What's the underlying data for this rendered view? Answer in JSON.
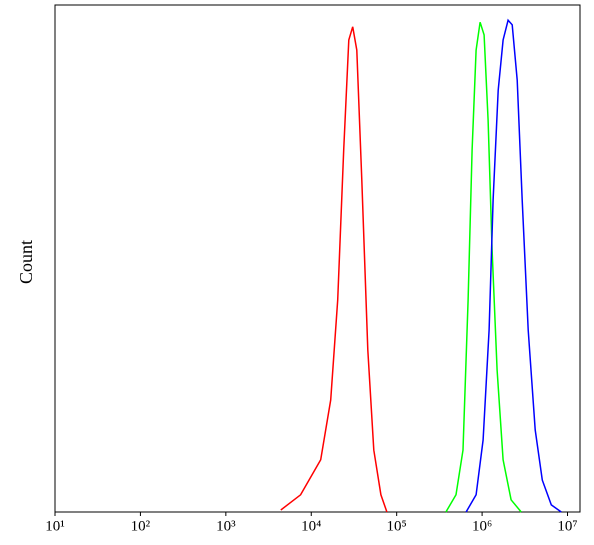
{
  "chart_data": {
    "type": "line",
    "y_label": "Count",
    "x_scale": "log",
    "xlim": [
      10,
      14000000
    ],
    "ylim": [
      0,
      100
    ],
    "xticks": [
      {
        "value": 10,
        "label": "10¹"
      },
      {
        "value": 100,
        "label": "10²"
      },
      {
        "value": 1000,
        "label": "10³"
      },
      {
        "value": 10000,
        "label": "10⁴"
      },
      {
        "value": 100000,
        "label": "10⁵"
      },
      {
        "value": 1000000,
        "label": "10⁶"
      },
      {
        "value": 10000000,
        "label": "10⁷"
      }
    ],
    "series": [
      {
        "color": "#ff0000",
        "x": [
          4400,
          7500,
          12900,
          16900,
          20400,
          24000,
          27500,
          30600,
          34100,
          39100,
          45900,
          54000,
          65300,
          76800
        ],
        "values": [
          0.4,
          3.4,
          10.3,
          22.1,
          41.8,
          71.4,
          93.1,
          95.7,
          91.1,
          65.5,
          32.0,
          12.2,
          3.4,
          0
        ]
      },
      {
        "color": "#00ff00",
        "x": [
          377000,
          495000,
          598000,
          685000,
          764000,
          851000,
          948000,
          1055000,
          1175000,
          1309000,
          1500000,
          1763000,
          2188000,
          2870000
        ],
        "values": [
          0,
          3.4,
          12.2,
          41.8,
          71.4,
          91.1,
          96.6,
          94.1,
          77.3,
          51.7,
          28.0,
          10.3,
          2.4,
          0
        ]
      },
      {
        "color": "#0000ff",
        "x": [
          649000,
          851000,
          1028000,
          1208000,
          1346000,
          1542000,
          1763000,
          2018000,
          2249000,
          2575000,
          2946000,
          3465000,
          4188000,
          5061000,
          6452000,
          8458000
        ],
        "values": [
          0,
          3.4,
          14.2,
          35.9,
          61.5,
          83.2,
          93.1,
          97.0,
          96.1,
          85.2,
          61.5,
          35.9,
          16.2,
          6.3,
          1.4,
          0
        ]
      }
    ]
  }
}
